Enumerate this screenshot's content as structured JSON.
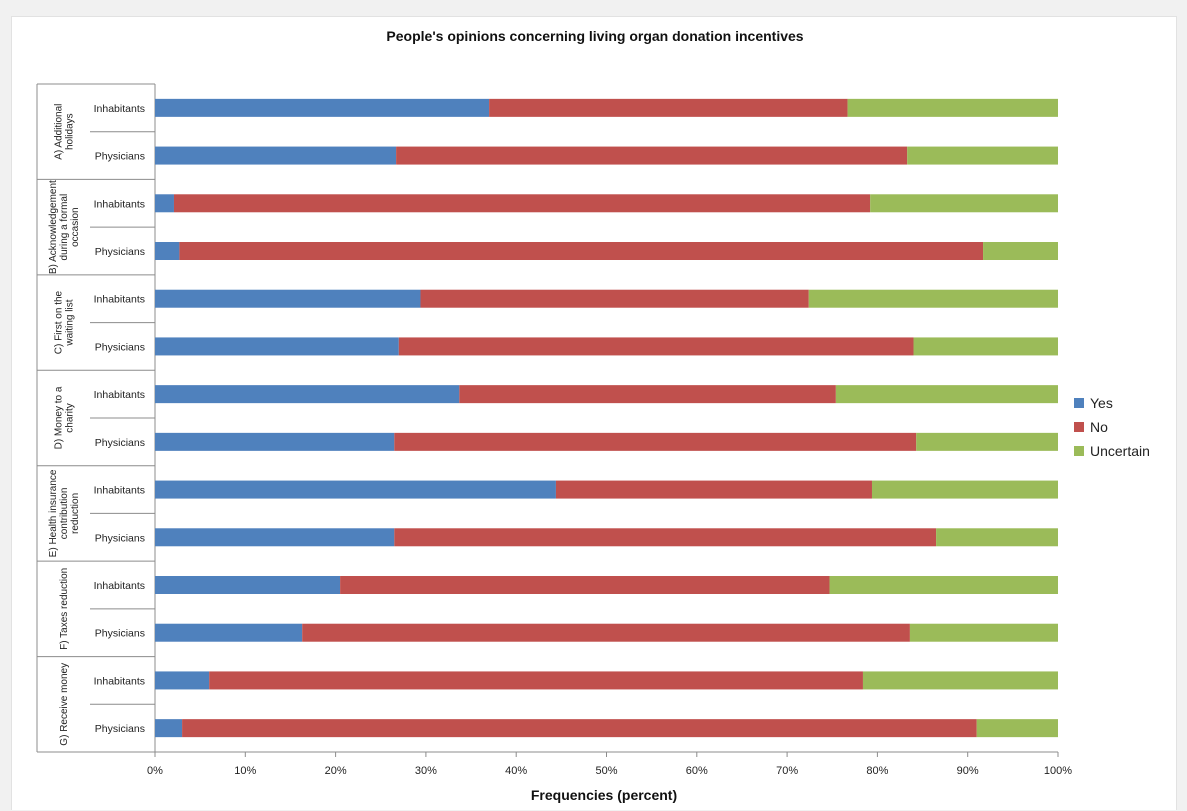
{
  "chart_data": {
    "type": "bar",
    "orientation": "horizontal-stacked-100",
    "title": "People's opinions concerning living organ donation incentives",
    "xlabel": "Frequencies (percent)",
    "ylabel": "",
    "xlim": [
      0,
      100
    ],
    "x_ticks": [
      "0%",
      "10%",
      "20%",
      "30%",
      "40%",
      "50%",
      "60%",
      "70%",
      "80%",
      "90%",
      "100%"
    ],
    "legend_position": "right",
    "grid": false,
    "series": [
      {
        "name": "Yes",
        "color": "#4f81bd"
      },
      {
        "name": "No",
        "color": "#c0504d"
      },
      {
        "name": "Uncertain",
        "color": "#9bbb59"
      }
    ],
    "groups": [
      {
        "label": [
          "A) Additional",
          "holidays"
        ],
        "rows": [
          {
            "name": "Inhabitants",
            "values": [
              37,
              39.7,
              23.3
            ]
          },
          {
            "name": "Physicians",
            "values": [
              26.7,
              56.6,
              16.7
            ]
          }
        ]
      },
      {
        "label": [
          "B) Acknowledgement",
          "during a formal",
          "occasion"
        ],
        "rows": [
          {
            "name": "Inhabitants",
            "values": [
              2.1,
              77.1,
              20.8
            ]
          },
          {
            "name": "Physicians",
            "values": [
              2.7,
              89,
              8.3
            ]
          }
        ]
      },
      {
        "label": [
          "C) First on the",
          "waiting list"
        ],
        "rows": [
          {
            "name": "Inhabitants",
            "values": [
              29.4,
              43,
              27.6
            ]
          },
          {
            "name": "Physicians",
            "values": [
              27,
              57,
              16
            ]
          }
        ]
      },
      {
        "label": [
          "D) Money to a",
          "charity"
        ],
        "rows": [
          {
            "name": "Inhabitants",
            "values": [
              33.7,
              41.7,
              24.6
            ]
          },
          {
            "name": "Physicians",
            "values": [
              26.5,
              57.8,
              15.7
            ]
          }
        ]
      },
      {
        "label": [
          "E) Health insurance",
          "contribution",
          "reduction"
        ],
        "rows": [
          {
            "name": "Inhabitants",
            "values": [
              44.4,
              35,
              20.6
            ]
          },
          {
            "name": "Physicians",
            "values": [
              26.5,
              60,
              13.5
            ]
          }
        ]
      },
      {
        "label": [
          "F) Taxes reduction"
        ],
        "rows": [
          {
            "name": "Inhabitants",
            "values": [
              20.5,
              54.2,
              25.3
            ]
          },
          {
            "name": "Physicians",
            "values": [
              16.3,
              67.3,
              16.4
            ]
          }
        ]
      },
      {
        "label": [
          "G) Receive money"
        ],
        "rows": [
          {
            "name": "Inhabitants",
            "values": [
              6,
              72.4,
              21.6
            ]
          },
          {
            "name": "Physicians",
            "values": [
              3,
              88,
              9
            ]
          }
        ]
      }
    ]
  }
}
